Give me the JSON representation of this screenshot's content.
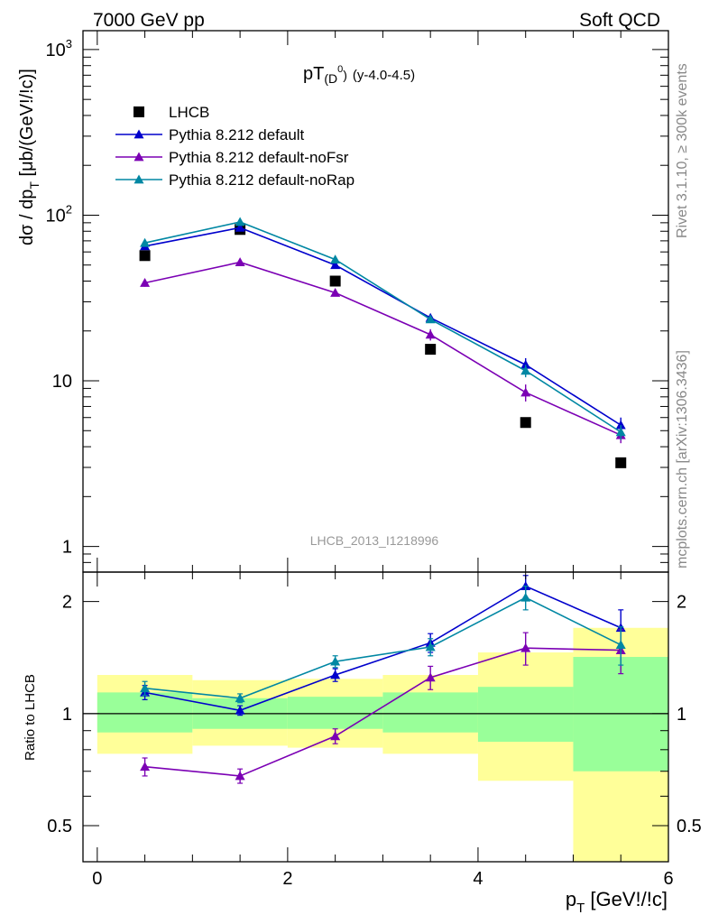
{
  "header": {
    "left": "7000 GeV pp",
    "right": "Soft QCD"
  },
  "side_text": {
    "rivet": "Rivet 3.1.10, ≥ 300k events",
    "mcplots": "mcplots.cern.ch [arXiv:1306.3436]"
  },
  "chart_data": [
    {
      "type": "scatter",
      "panel": "main",
      "title_main": "pT",
      "title_sub": "(D",
      "title_sup": "0",
      "title_close": ")",
      "title_range": "(y-4.0-4.5)",
      "ylabel_main": "dσ / dp",
      "ylabel_sub": "T",
      "ylabel_rest": " [μb/(GeV!/!c)]",
      "watermark": "LHCB_2013_I1218996",
      "yscale": "log",
      "ylim": [
        0.7,
        1300
      ],
      "xlim": [
        -0.15,
        6.0
      ],
      "yticks": [
        {
          "v": 1,
          "label": "1",
          "sup": ""
        },
        {
          "v": 10,
          "label": "10",
          "sup": ""
        },
        {
          "v": 100,
          "label": "10",
          "sup": "2"
        },
        {
          "v": 1000,
          "label": "10",
          "sup": "3"
        }
      ],
      "legend_position": "top-left",
      "series": [
        {
          "name": "LHCB",
          "marker": "square",
          "color": "#000000",
          "x": [
            0.5,
            1.5,
            2.5,
            3.5,
            4.5,
            5.5
          ],
          "y": [
            57,
            82,
            40,
            15.5,
            5.6,
            3.2
          ]
        },
        {
          "name": "Pythia 8.212 default",
          "marker": "triangle",
          "color": "#0000cc",
          "x": [
            0.5,
            1.5,
            2.5,
            3.5,
            4.5,
            5.5
          ],
          "y": [
            65,
            84,
            50,
            24,
            12.5,
            5.4
          ],
          "err": [
            2,
            2.5,
            1.5,
            1,
            1.2,
            0.6
          ]
        },
        {
          "name": "Pythia 8.212 default-noFsr",
          "marker": "triangle",
          "color": "#7b00b4",
          "x": [
            0.5,
            1.5,
            2.5,
            3.5,
            4.5,
            5.5
          ],
          "y": [
            39,
            52,
            34,
            19,
            8.5,
            4.7
          ],
          "err": [
            2,
            2,
            1.5,
            1.5,
            1,
            0.5
          ]
        },
        {
          "name": "Pythia 8.212 default-noRap",
          "marker": "triangle",
          "color": "#0087a3",
          "x": [
            0.5,
            1.5,
            2.5,
            3.5,
            4.5,
            5.5
          ],
          "y": [
            68,
            91,
            54,
            23.5,
            11.5,
            4.9
          ],
          "err": [
            2,
            2.5,
            1.5,
            1,
            1,
            0.5
          ]
        }
      ]
    },
    {
      "type": "scatter",
      "panel": "ratio",
      "ylabel": "Ratio to LHCB",
      "xlabel_main": "p",
      "xlabel_sub": "T",
      "xlabel_rest": " [GeV!/!c]",
      "yscale": "log",
      "ylim": [
        0.4,
        2.4
      ],
      "xlim": [
        -0.15,
        6.0
      ],
      "yticks": [
        {
          "v": 0.5,
          "label": "0.5"
        },
        {
          "v": 1,
          "label": "1"
        },
        {
          "v": 2,
          "label": "2"
        }
      ],
      "xticks": [
        {
          "v": 0,
          "label": "0"
        },
        {
          "v": 2,
          "label": "2"
        },
        {
          "v": 4,
          "label": "4"
        },
        {
          "v": 6,
          "label": "6"
        }
      ],
      "bands": [
        {
          "x0": 0,
          "x1": 1,
          "yellow": [
            0.78,
            1.27
          ],
          "green": [
            0.89,
            1.14
          ]
        },
        {
          "x0": 1,
          "x1": 2,
          "yellow": [
            0.82,
            1.23
          ],
          "green": [
            0.91,
            1.1
          ]
        },
        {
          "x0": 2,
          "x1": 3,
          "yellow": [
            0.81,
            1.24
          ],
          "green": [
            0.91,
            1.11
          ]
        },
        {
          "x0": 3,
          "x1": 4,
          "yellow": [
            0.78,
            1.27
          ],
          "green": [
            0.89,
            1.14
          ]
        },
        {
          "x0": 4,
          "x1": 5,
          "yellow": [
            0.66,
            1.46
          ],
          "green": [
            0.84,
            1.18
          ]
        },
        {
          "x0": 5,
          "x1": 6,
          "yellow": [
            0.4,
            1.7
          ],
          "green": [
            0.7,
            1.42
          ]
        }
      ],
      "series": [
        {
          "name": "Pythia 8.212 default",
          "color": "#0000cc",
          "x": [
            0.5,
            1.5,
            2.5,
            3.5,
            4.5,
            5.5
          ],
          "y": [
            1.14,
            1.02,
            1.27,
            1.55,
            2.2,
            1.7
          ],
          "err": [
            0.05,
            0.03,
            0.05,
            0.09,
            0.15,
            0.2
          ]
        },
        {
          "name": "Pythia 8.212 default-noFsr",
          "color": "#7b00b4",
          "x": [
            0.5,
            1.5,
            2.5,
            3.5,
            4.5,
            5.5
          ],
          "y": [
            0.72,
            0.68,
            0.87,
            1.25,
            1.5,
            1.48
          ],
          "err": [
            0.04,
            0.03,
            0.04,
            0.09,
            0.15,
            0.2
          ]
        },
        {
          "name": "Pythia 8.212 default-noRap",
          "color": "#0087a3",
          "x": [
            0.5,
            1.5,
            2.5,
            3.5,
            4.5,
            5.5
          ],
          "y": [
            1.17,
            1.1,
            1.38,
            1.51,
            2.05,
            1.53
          ],
          "err": [
            0.05,
            0.03,
            0.05,
            0.08,
            0.15,
            0.18
          ]
        }
      ]
    }
  ]
}
